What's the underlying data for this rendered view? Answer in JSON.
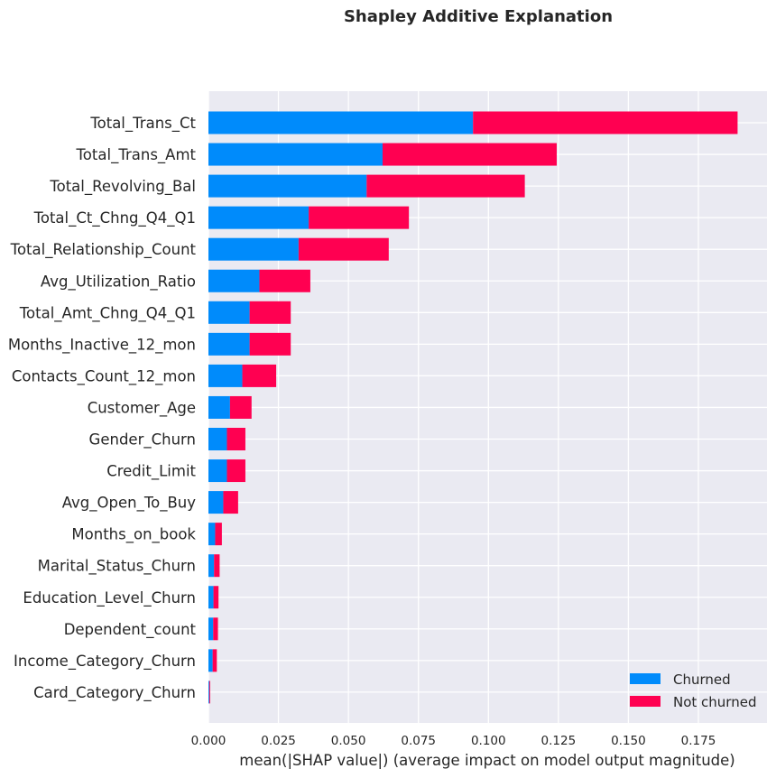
{
  "chart_data": {
    "type": "bar",
    "stacked": true,
    "orientation": "horizontal",
    "title": "Shapley Additive Explanation",
    "xlabel": "mean(|SHAP value|) (average impact on model output magnitude)",
    "ylabel": "",
    "xlim": [
      0,
      0.1995
    ],
    "xticks": [
      0.0,
      0.025,
      0.05,
      0.075,
      0.1,
      0.125,
      0.15,
      0.175
    ],
    "xtick_labels": [
      "0.000",
      "0.025",
      "0.050",
      "0.075",
      "0.100",
      "0.125",
      "0.150",
      "0.175"
    ],
    "grid": true,
    "legend_position": "bottom-right",
    "categories": [
      "Total_Trans_Ct",
      "Total_Trans_Amt",
      "Total_Revolving_Bal",
      "Total_Ct_Chng_Q4_Q1",
      "Total_Relationship_Count",
      "Avg_Utilization_Ratio",
      "Total_Amt_Chng_Q4_Q1",
      "Months_Inactive_12_mon",
      "Contacts_Count_12_mon",
      "Customer_Age",
      "Gender_Churn",
      "Credit_Limit",
      "Avg_Open_To_Buy",
      "Months_on_book",
      "Marital_Status_Churn",
      "Education_Level_Churn",
      "Dependent_count",
      "Income_Category_Churn",
      "Card_Category_Churn"
    ],
    "series": [
      {
        "name": "Churned",
        "color": "#008bfb",
        "values": [
          0.0945,
          0.0622,
          0.0565,
          0.0358,
          0.0322,
          0.0182,
          0.0147,
          0.0147,
          0.0121,
          0.0077,
          0.0066,
          0.0066,
          0.0053,
          0.0024,
          0.002,
          0.0018,
          0.0017,
          0.0015,
          0.0003
        ]
      },
      {
        "name": "Not churned",
        "color": "#ff0051",
        "values": [
          0.0945,
          0.0622,
          0.0565,
          0.0358,
          0.0322,
          0.0182,
          0.0147,
          0.0147,
          0.0121,
          0.0077,
          0.0066,
          0.0066,
          0.0053,
          0.0024,
          0.002,
          0.0018,
          0.0017,
          0.0015,
          0.0003
        ]
      }
    ]
  }
}
